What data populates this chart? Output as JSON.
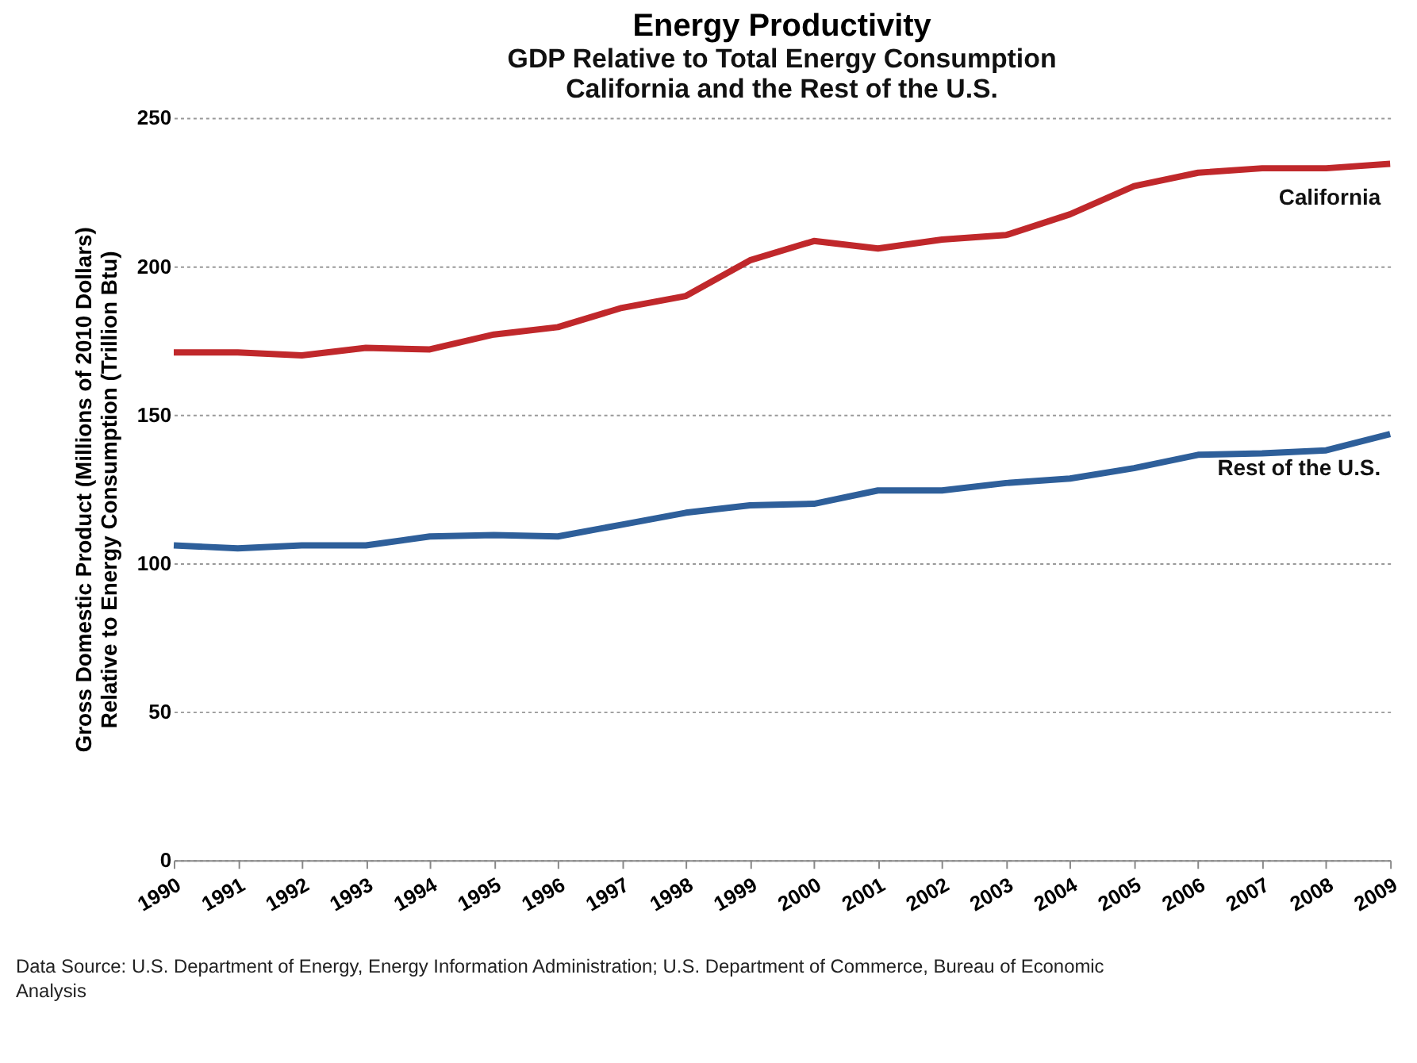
{
  "chart_data": {
    "type": "line",
    "title": "Energy Productivity",
    "subtitle": "GDP Relative to Total Energy Consumption\nCalifornia and the Rest of the U.S.",
    "ylabel": "Gross Domestic Product (Millions of 2010 Dollars)\nRelative to Energy Consumption  (Trillion Btu)",
    "x": [
      1990,
      1991,
      1992,
      1993,
      1994,
      1995,
      1996,
      1997,
      1998,
      1999,
      2000,
      2001,
      2002,
      2003,
      2004,
      2005,
      2006,
      2007,
      2008,
      2009
    ],
    "xlim": [
      1990,
      2009
    ],
    "xticks": [
      1990,
      1991,
      1992,
      1993,
      1994,
      1995,
      1996,
      1997,
      1998,
      1999,
      2000,
      2001,
      2002,
      2003,
      2004,
      2005,
      2006,
      2007,
      2008,
      2009
    ],
    "ylim": [
      0,
      250
    ],
    "yticks": [
      0,
      50,
      100,
      150,
      200,
      250
    ],
    "grid": "y",
    "legend": false,
    "marker": "none",
    "line_style": "solid",
    "series": [
      {
        "name": "California",
        "color": "#c0282b",
        "values": [
          171,
          171,
          170,
          172.5,
          172,
          177,
          179.5,
          186,
          190,
          202,
          208.5,
          206,
          209,
          210.5,
          217.5,
          227,
          231.5,
          233,
          233,
          234.5
        ]
      },
      {
        "name": "Rest of the U.S.",
        "color": "#2e5f9a",
        "values": [
          106,
          105,
          106,
          106,
          109,
          109.5,
          109,
          113,
          117,
          119.5,
          120,
          124.5,
          124.5,
          127,
          128.5,
          132,
          136.5,
          137,
          138,
          143.5
        ]
      }
    ],
    "annotations": [
      "Data Source: U.S. Department of Energy, Energy Information Administration; U.S. Department of Commerce, Bureau of Economic Analysis"
    ]
  }
}
